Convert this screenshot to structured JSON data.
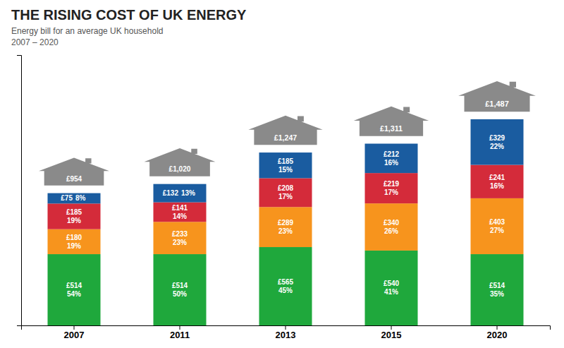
{
  "chart_data": {
    "type": "bar",
    "stacked": true,
    "data_labels": true,
    "tick_labels": "x",
    "title": "THE RISING COST OF UK ENERGY",
    "subtitle": "Energy bill for an average UK household\n2007 – 2020",
    "categories": [
      "2007",
      "2011",
      "2013",
      "2015",
      "2020"
    ],
    "ylim": [
      0,
      1950
    ],
    "series": [
      {
        "color": "#1fa83c",
        "values": [
          514,
          514,
          565,
          540,
          514
        ],
        "value_labels": [
          "£514",
          "£514",
          "£565",
          "£540",
          "£514"
        ],
        "shares": [
          54,
          50,
          45,
          41,
          35
        ],
        "share_labels": [
          "54%",
          "50%",
          "45%",
          "41%",
          "35%"
        ]
      },
      {
        "color": "#f7941d",
        "values": [
          180,
          233,
          289,
          340,
          403
        ],
        "value_labels": [
          "£180",
          "£233",
          "£289",
          "£340",
          "£403"
        ],
        "shares": [
          19,
          23,
          23,
          26,
          27
        ],
        "share_labels": [
          "19%",
          "23%",
          "23%",
          "26%",
          "27%"
        ]
      },
      {
        "color": "#d42b3a",
        "values": [
          185,
          141,
          208,
          219,
          241
        ],
        "value_labels": [
          "£185",
          "£141",
          "£208",
          "£219",
          "£241"
        ],
        "shares": [
          19,
          14,
          17,
          17,
          16
        ],
        "share_labels": [
          "19%",
          "14%",
          "17%",
          "17%",
          "16%"
        ]
      },
      {
        "color": "#1a5ca0",
        "values": [
          75,
          132,
          185,
          212,
          329
        ],
        "value_labels": [
          "£75",
          "£132",
          "£185",
          "£212",
          "£329"
        ],
        "shares": [
          8,
          13,
          15,
          16,
          22
        ],
        "share_labels": [
          "8%",
          "13%",
          "15%",
          "16%",
          "22%"
        ]
      }
    ],
    "totals": [
      954,
      1020,
      1247,
      1311,
      1487
    ],
    "total_labels": [
      "£954",
      "£1,020",
      "£1,247",
      "£1,311",
      "£1,487"
    ]
  }
}
